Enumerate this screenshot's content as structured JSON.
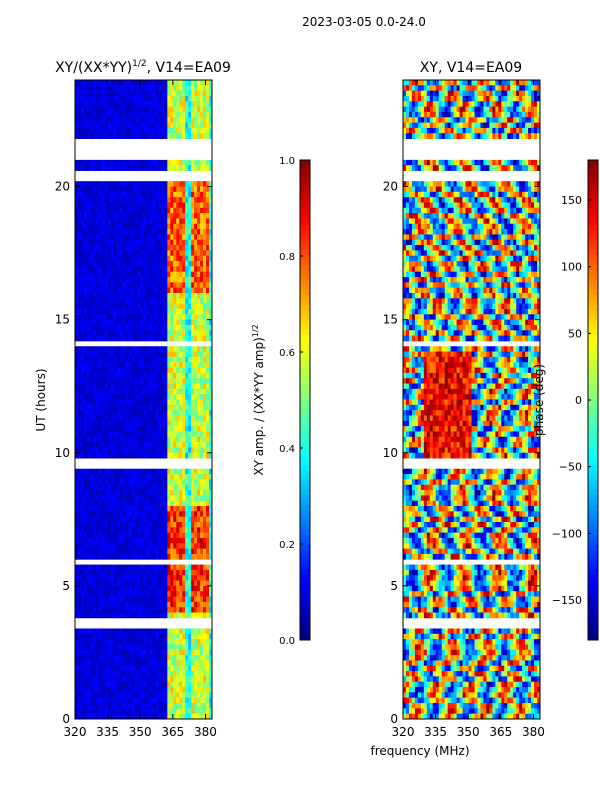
{
  "suptitle": "2023-03-05 0.0-24.0",
  "xlabel_shared": "frequency (MHz)",
  "chart_data": [
    {
      "type": "heatmap",
      "title_main": "XY/(XX*YY)",
      "title_sup": "1/2",
      "title_suffix": ", V14=EA09",
      "ylabel": "UT (hours)",
      "xlim": [
        320,
        383
      ],
      "ylim": [
        0,
        24
      ],
      "xticks": [
        320,
        335,
        350,
        365,
        380
      ],
      "yticks": [
        0,
        5,
        10,
        15,
        20
      ],
      "colorscale": "jet",
      "band_freqs": [
        364,
        369,
        375,
        380
      ],
      "colorbar": {
        "label_main": "XY amp. / (XX*YY amp)",
        "label_sup": "1/2",
        "range": [
          0.0,
          1.0
        ],
        "ticks": [
          0.0,
          0.2,
          0.4,
          0.6,
          0.8,
          1.0
        ],
        "tick_labels": [
          "0.0",
          "0.2",
          "0.4",
          "0.6",
          "0.8",
          "1.0"
        ]
      },
      "gaps_hours": [
        [
          21.1,
          21.8
        ],
        [
          20.3,
          20.5
        ],
        [
          14.0,
          14.2
        ],
        [
          9.5,
          9.8
        ],
        [
          5.8,
          5.95
        ],
        [
          3.4,
          3.7
        ],
        [
          1.1,
          1.15
        ]
      ]
    },
    {
      "type": "heatmap",
      "title_main": "XY, V14=EA09",
      "xlim": [
        320,
        383
      ],
      "ylim": [
        0,
        24
      ],
      "xticks": [
        320,
        335,
        350,
        365,
        380
      ],
      "yticks": [
        0,
        5,
        10,
        15,
        20
      ],
      "colorscale": "jet",
      "colorbar": {
        "label_main": "phase (deg)",
        "range": [
          -180,
          180
        ],
        "ticks": [
          -150,
          -100,
          -50,
          0,
          50,
          100,
          150
        ],
        "tick_labels": [
          "−150",
          "−100",
          "−50",
          "0",
          "50",
          "100",
          "150"
        ]
      },
      "gaps_hours": [
        [
          21.1,
          21.8
        ],
        [
          20.3,
          20.5
        ],
        [
          14.0,
          14.2
        ],
        [
          9.5,
          9.8
        ],
        [
          5.8,
          5.95
        ],
        [
          3.4,
          3.7
        ]
      ]
    }
  ]
}
